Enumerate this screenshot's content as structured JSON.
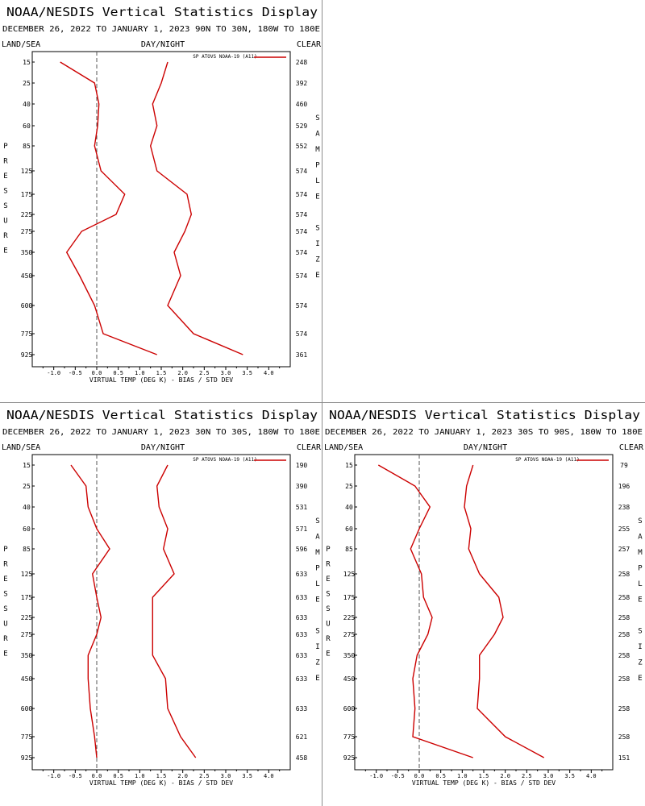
{
  "chart_data": [
    {
      "type": "line",
      "title": "NOAA/NESDIS Vertical Statistics Display",
      "subtitle": "DECEMBER 26, 2022 TO JANUARY 1, 2023 90N TO 30N, 180W TO 180E",
      "corner_labels": {
        "left": "LAND/SEA",
        "center": "DAY/NIGHT",
        "right": "CLEAR"
      },
      "xlabel": "VIRTUAL TEMP (DEG K) - BIAS / STD DEV",
      "left_axis_label": "PRESSURE",
      "right_axis_label": "SAMPLE SIZE",
      "xlim": [
        -1.5,
        4.5
      ],
      "x_ticks": [
        "-1.0",
        "-0.5",
        "0.0",
        "0.5",
        "1.0",
        "1.5",
        "2.0",
        "2.5",
        "3.0",
        "3.5",
        "4.0"
      ],
      "pressure_levels": [
        "15",
        "25",
        "40",
        "60",
        "85",
        "125",
        "175",
        "225",
        "275",
        "350",
        "450",
        "600",
        "775",
        "925"
      ],
      "sample_sizes": [
        "248",
        "392",
        "460",
        "529",
        "552",
        "574",
        "574",
        "574",
        "574",
        "574",
        "574",
        "574",
        "574",
        "361"
      ],
      "legend": "SP ATOVS NOAA-19 (A11)",
      "line_color": "#cc0000",
      "series": [
        {
          "values": [
            -0.85,
            -0.05,
            0.05,
            0.02,
            -0.05,
            0.1,
            0.65,
            0.45,
            -0.35,
            -0.7,
            -0.4,
            -0.05,
            0.15,
            1.4
          ]
        },
        {
          "values": [
            1.65,
            1.5,
            1.3,
            1.4,
            1.25,
            1.4,
            2.1,
            2.2,
            2.05,
            1.8,
            1.95,
            1.65,
            2.25,
            3.4
          ]
        }
      ]
    },
    {
      "type": "line",
      "title": "NOAA/NESDIS Vertical Statistics Display",
      "subtitle": "DECEMBER 26, 2022 TO JANUARY 1, 2023 30N TO 30S, 180W TO 180E",
      "corner_labels": {
        "left": "LAND/SEA",
        "center": "DAY/NIGHT",
        "right": "CLEAR"
      },
      "xlabel": "VIRTUAL TEMP (DEG K) - BIAS / STD DEV",
      "left_axis_label": "PRESSURE",
      "right_axis_label": "SAMPLE SIZE",
      "xlim": [
        -1.5,
        4.5
      ],
      "x_ticks": [
        "-1.0",
        "-0.5",
        "0.0",
        "0.5",
        "1.0",
        "1.5",
        "2.0",
        "2.5",
        "3.0",
        "3.5",
        "4.0"
      ],
      "pressure_levels": [
        "15",
        "25",
        "40",
        "60",
        "85",
        "125",
        "175",
        "225",
        "275",
        "350",
        "450",
        "600",
        "775",
        "925"
      ],
      "sample_sizes": [
        "190",
        "390",
        "531",
        "571",
        "596",
        "633",
        "633",
        "633",
        "633",
        "633",
        "633",
        "633",
        "621",
        "458"
      ],
      "legend": "SP ATOVS NOAA-19 (A11)",
      "line_color": "#cc0000",
      "series": [
        {
          "values": [
            -0.6,
            -0.25,
            -0.2,
            0.0,
            0.3,
            -0.1,
            0.0,
            0.1,
            0.0,
            -0.2,
            -0.2,
            -0.15,
            -0.05,
            0.0
          ]
        },
        {
          "values": [
            1.65,
            1.4,
            1.45,
            1.65,
            1.55,
            1.8,
            1.3,
            1.3,
            1.3,
            1.3,
            1.6,
            1.65,
            1.95,
            2.3
          ]
        }
      ]
    },
    {
      "type": "line",
      "title": "NOAA/NESDIS Vertical Statistics Display",
      "subtitle": "DECEMBER 26, 2022 TO JANUARY 1, 2023 30S TO 90S, 180W TO 180E",
      "corner_labels": {
        "left": "LAND/SEA",
        "center": "DAY/NIGHT",
        "right": "CLEAR"
      },
      "xlabel": "VIRTUAL TEMP (DEG K) - BIAS / STD DEV",
      "left_axis_label": "PRESSURE",
      "right_axis_label": "SAMPLE SIZE",
      "xlim": [
        -1.5,
        4.5
      ],
      "x_ticks": [
        "-1.0",
        "-0.5",
        "0.0",
        "0.5",
        "1.0",
        "1.5",
        "2.0",
        "2.5",
        "3.0",
        "3.5",
        "4.0"
      ],
      "pressure_levels": [
        "15",
        "25",
        "40",
        "60",
        "85",
        "125",
        "175",
        "225",
        "275",
        "350",
        "450",
        "600",
        "775",
        "925"
      ],
      "sample_sizes": [
        "79",
        "196",
        "238",
        "255",
        "257",
        "258",
        "258",
        "258",
        "258",
        "258",
        "258",
        "258",
        "258",
        "151"
      ],
      "legend": "SP ATOVS NOAA-19 (A11)",
      "line_color": "#cc0000",
      "series": [
        {
          "values": [
            -0.95,
            -0.1,
            0.25,
            0.0,
            -0.2,
            0.05,
            0.1,
            0.3,
            0.2,
            -0.05,
            -0.15,
            -0.1,
            -0.15,
            1.25
          ]
        },
        {
          "values": [
            1.25,
            1.1,
            1.05,
            1.2,
            1.15,
            1.4,
            1.85,
            1.95,
            1.75,
            1.4,
            1.4,
            1.35,
            2.0,
            2.9
          ]
        }
      ]
    }
  ]
}
